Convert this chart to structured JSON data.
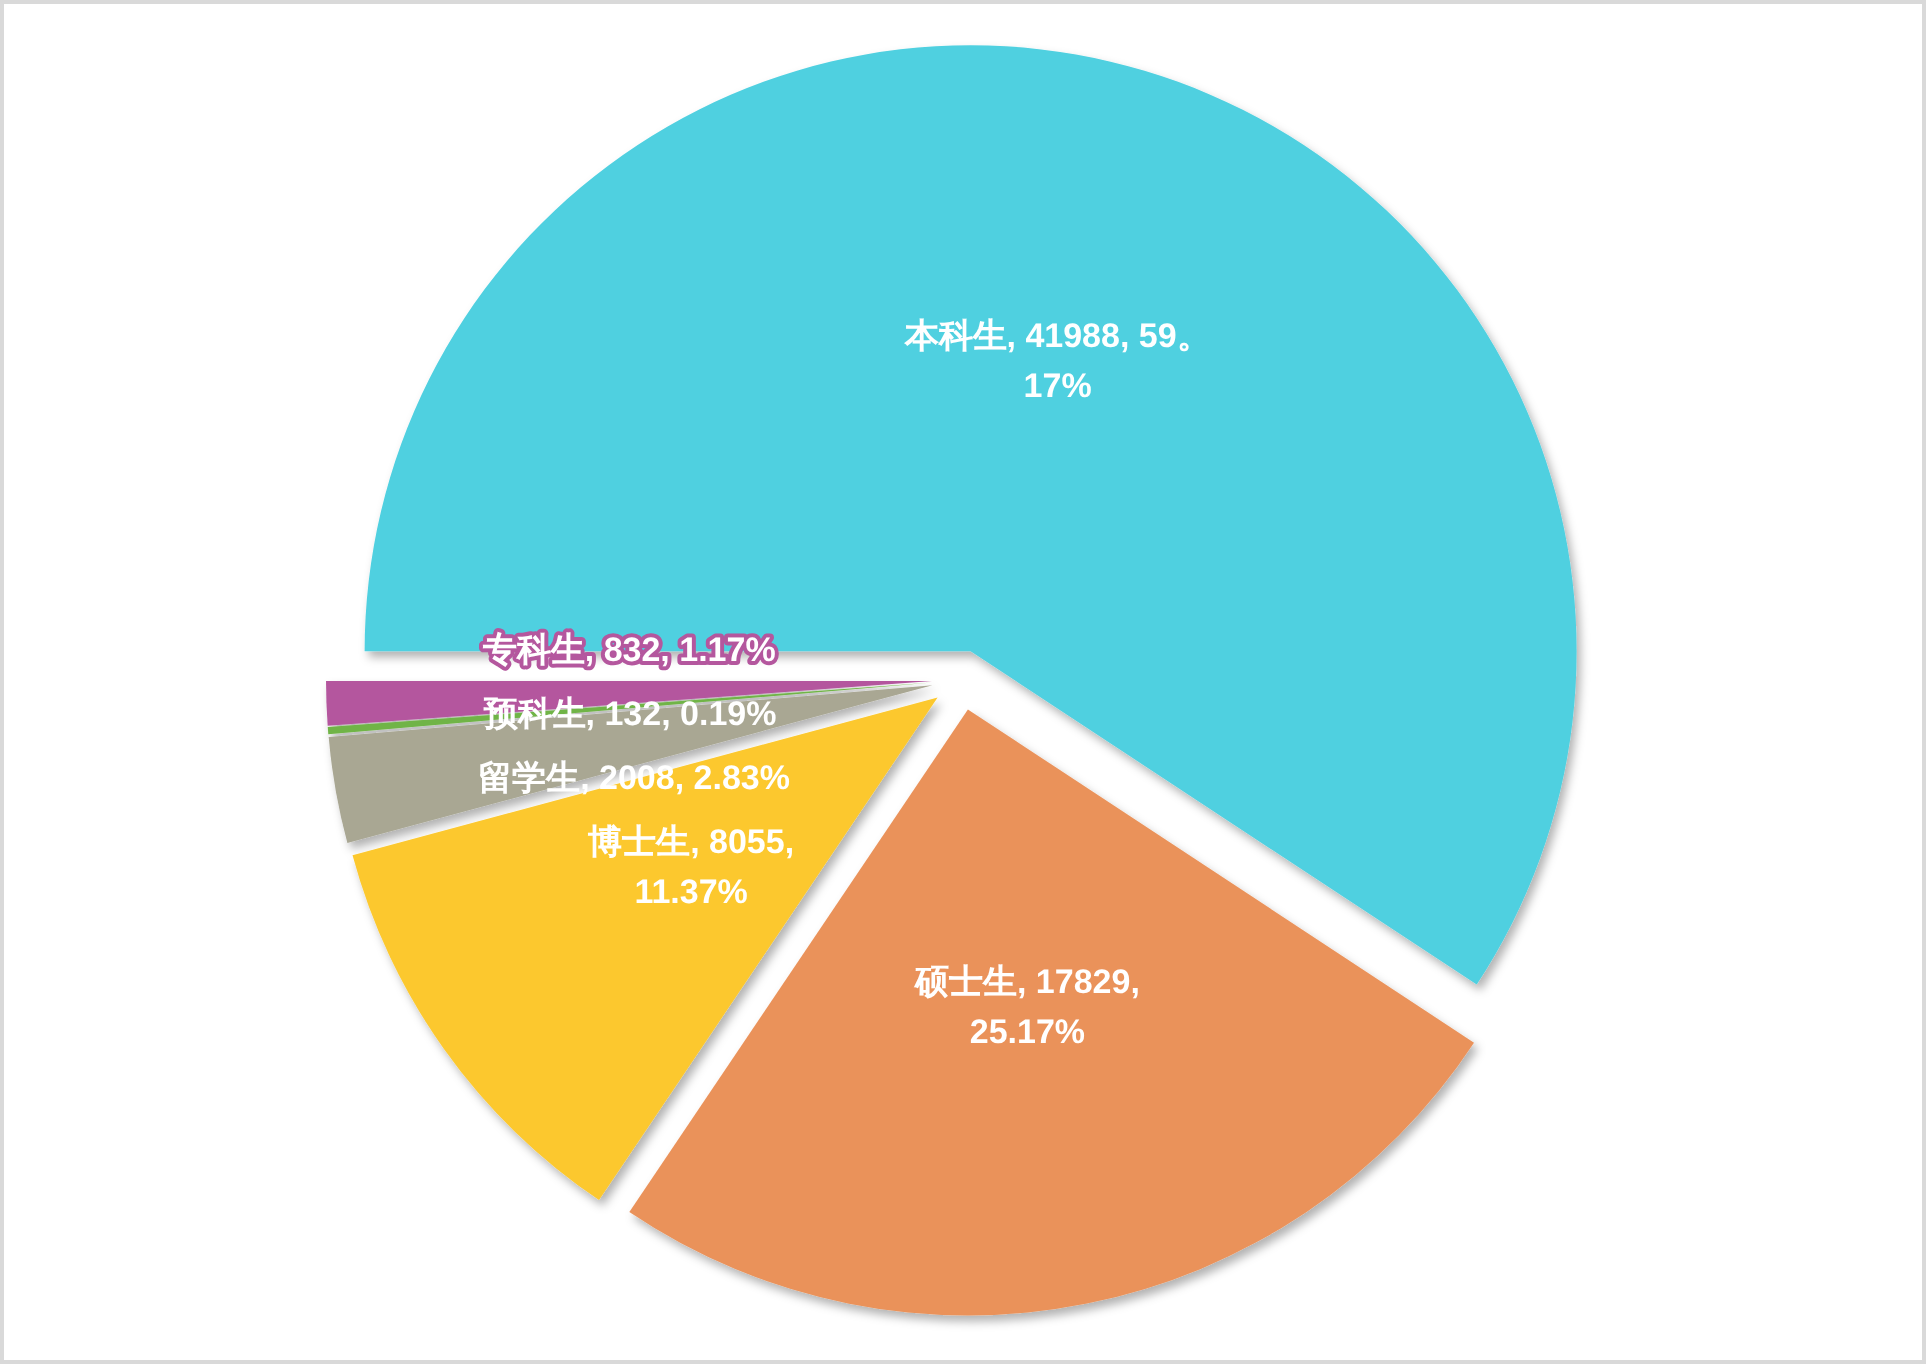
{
  "chart_data": {
    "type": "pie",
    "categories": [
      "本科生",
      "硕士生",
      "博士生",
      "留学生",
      "预科生",
      "专科生"
    ],
    "values": [
      41988,
      17829,
      8055,
      2008,
      132,
      832
    ],
    "colors": [
      "#50d0e0",
      "#ea925a",
      "#fcc82e",
      "#a9a793",
      "#70b446",
      "#b4579e"
    ],
    "value_labels": [
      "41988, 59。17%",
      "17829, 25.17%",
      "8055, 11.37%",
      "2008, 2.83%",
      "132, 0.19%",
      "832, 1.17%"
    ]
  }
}
